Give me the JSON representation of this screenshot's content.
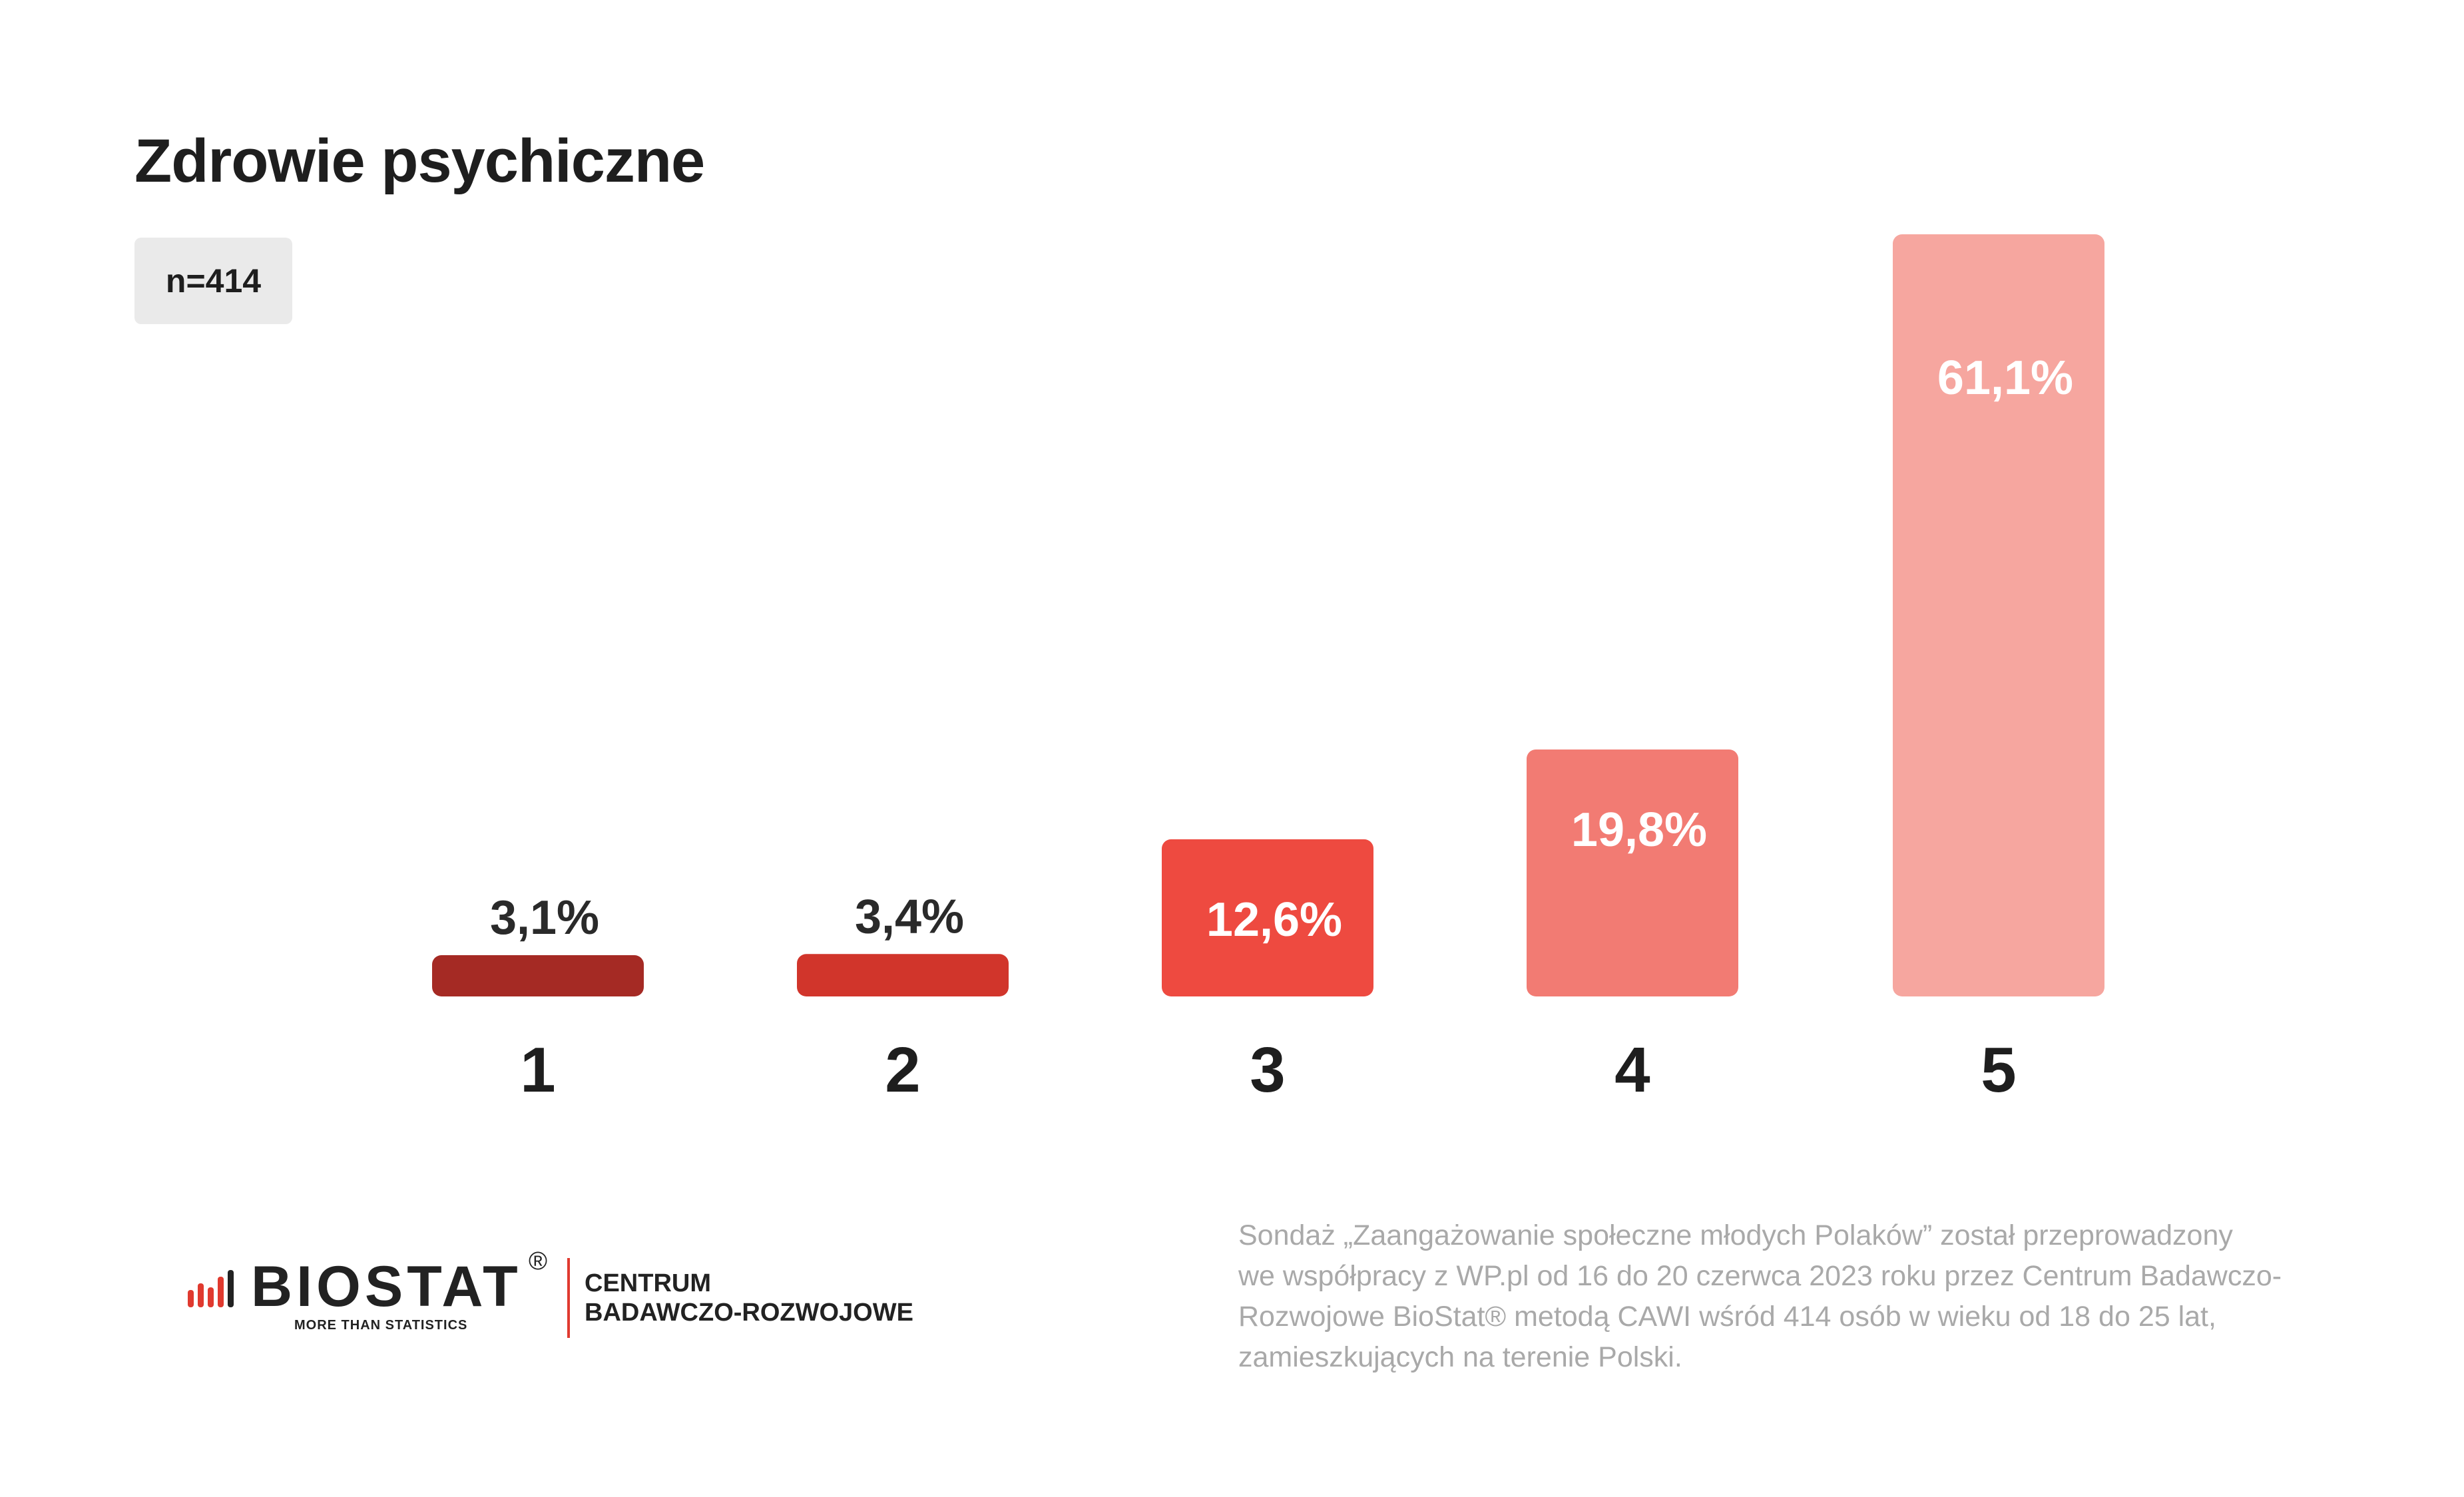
{
  "title": "Zdrowie psychiczne",
  "sample_badge": "n=414",
  "chart_data": {
    "type": "bar",
    "categories": [
      "1",
      "2",
      "3",
      "4",
      "5"
    ],
    "values": [
      3.1,
      3.4,
      12.6,
      19.8,
      61.1
    ],
    "value_labels": [
      "3,1%",
      "3,4%",
      "12,6%",
      "19,8%",
      "61,1%"
    ],
    "colors": [
      "#a52a24",
      "#d1352b",
      "#ee4a40",
      "#f27b73",
      "#f6a69f"
    ],
    "ylim": [
      0,
      61.1
    ],
    "xlabel": "",
    "ylabel": "",
    "grid": false
  },
  "logo": {
    "wordmark": "BIOSTAT",
    "registered": "®",
    "tagline": "MORE THAN STATISTICS",
    "right_line1": "CENTRUM",
    "right_line2": "BADAWCZO-ROZWOJOWE"
  },
  "footnote": {
    "line1": "Sondaż  „Zaangażowanie społeczne młodych Polaków” został przeprowadzony",
    "line2": "we współpracy z WP.pl od 16 do 20 czerwca 2023 roku przez Centrum Badawczo-",
    "line3": "Rozwojowe BioStat® metodą CAWI wśród 414 osób w wieku od 18 do 25 lat,",
    "line4": "zamieszkujących na terenie Polski."
  }
}
